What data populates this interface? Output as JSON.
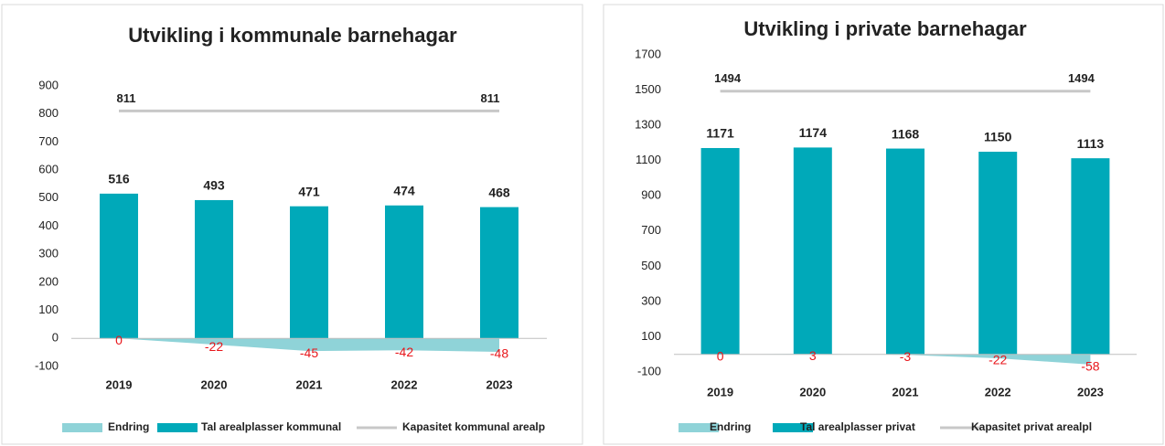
{
  "chart_data": [
    {
      "type": "bar",
      "title": "Utvikling i kommunale barnehagar",
      "categories": [
        "2019",
        "2020",
        "2021",
        "2022",
        "2023"
      ],
      "series": [
        {
          "name": "Endring",
          "kind": "area",
          "color": "#8fd3d8",
          "label_color": "#e8161b",
          "values": [
            0,
            -22,
            -45,
            -42,
            -48
          ]
        },
        {
          "name": "Tal arealplasser kommunal",
          "kind": "bar",
          "color": "#00a9b9",
          "values": [
            516,
            493,
            471,
            474,
            468
          ]
        },
        {
          "name": "Kapasitet kommunal arealp",
          "kind": "line",
          "color": "#c8c8c8",
          "values": [
            811,
            811,
            811,
            811,
            811
          ]
        }
      ],
      "ylim": [
        -100,
        900
      ],
      "yticks": [
        -100,
        0,
        100,
        200,
        300,
        400,
        500,
        600,
        700,
        800,
        900
      ]
    },
    {
      "type": "bar",
      "title": "Utvikling i private barnehagar",
      "categories": [
        "2019",
        "2020",
        "2021",
        "2022",
        "2023"
      ],
      "series": [
        {
          "name": "Endring",
          "kind": "area",
          "color": "#8fd3d8",
          "label_color": "#e8161b",
          "values": [
            0,
            3,
            -3,
            -22,
            -58
          ]
        },
        {
          "name": "Tal arealplasser privat",
          "kind": "bar",
          "color": "#00a9b9",
          "values": [
            1171,
            1174,
            1168,
            1150,
            1113
          ]
        },
        {
          "name": "Kapasitet privat arealpl",
          "kind": "line",
          "color": "#c8c8c8",
          "values": [
            1494,
            1494,
            1494,
            1494,
            1494
          ]
        }
      ],
      "ylim": [
        -100,
        1700
      ],
      "yticks": [
        -100,
        100,
        300,
        500,
        700,
        900,
        1100,
        1300,
        1500,
        1700
      ]
    }
  ]
}
